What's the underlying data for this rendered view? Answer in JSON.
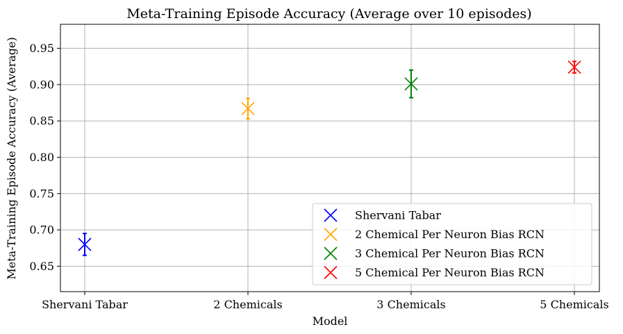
{
  "chart_data": {
    "type": "scatter",
    "title": "Meta-Training Episode Accuracy (Average over 10 episodes)",
    "xlabel": "Model",
    "ylabel": "Meta-Training Episode Accuracy (Average)",
    "categories": [
      "Shervani Tabar",
      "2 Chemicals",
      "3 Chemicals",
      "5 Chemicals"
    ],
    "ylim": [
      0.615,
      0.983
    ],
    "yticks": [
      "0.65",
      "0.70",
      "0.75",
      "0.80",
      "0.85",
      "0.90",
      "0.95"
    ],
    "grid": true,
    "legend_position": "lower right",
    "series": [
      {
        "name": "Shervani Tabar",
        "category_index": 0,
        "value": 0.68,
        "error": 0.015,
        "color": "#0000ff"
      },
      {
        "name": "2 Chemical Per Neuron Bias RCN",
        "category_index": 1,
        "value": 0.867,
        "error": 0.014,
        "color": "#ffa500"
      },
      {
        "name": "3 Chemical Per Neuron Bias RCN",
        "category_index": 2,
        "value": 0.901,
        "error": 0.019,
        "color": "#008000"
      },
      {
        "name": "5 Chemical Per Neuron Bias RCN",
        "category_index": 3,
        "value": 0.924,
        "error": 0.008,
        "color": "#ff0000"
      }
    ],
    "marker": "x"
  }
}
